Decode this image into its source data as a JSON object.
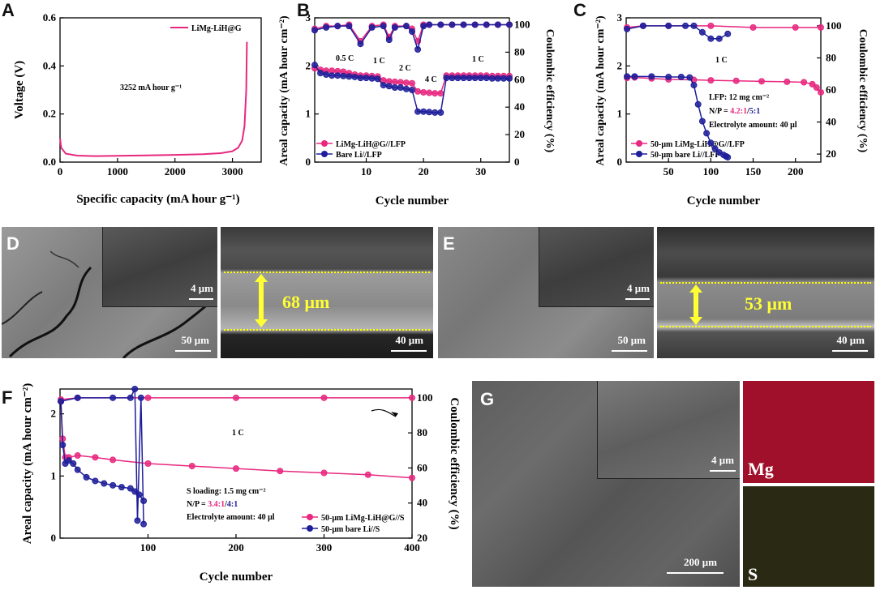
{
  "panels": {
    "A": {
      "letter": "A",
      "xlabel": "Specific capacity (mA hour g⁻¹)",
      "ylabel": "Voltage (V)",
      "legend": "LiMg-LiH@G",
      "annotation": "3252 mA hour g⁻¹",
      "xticks": [
        "0",
        "1000",
        "2000",
        "3000"
      ],
      "yticks": [
        "0.0",
        "0.2",
        "0.4",
        "0.6"
      ]
    },
    "B": {
      "letter": "B",
      "xlabel": "Cycle number",
      "ylabel": "Areal capacity (mA hour cm⁻²)",
      "y2label": "Coulombic efficiency (%)",
      "legend": [
        "LiMg-LiH@G//LFP",
        "Bare Li//LFP"
      ],
      "rates": [
        "0.5 C",
        "1 C",
        "2 C",
        "4 C",
        "1 C"
      ],
      "xticks": [
        "10",
        "20",
        "30"
      ],
      "yticks": [
        "0",
        "1",
        "2",
        "3"
      ],
      "y2ticks": [
        "0",
        "20",
        "40",
        "60",
        "80",
        "100"
      ]
    },
    "C": {
      "letter": "C",
      "xlabel": "Cycle number",
      "ylabel": "Areal capacity (mA hour cm⁻²)",
      "y2label": "Coulombic efficiency (%)",
      "legend": [
        "50-μm LiMg-LiH@G//LFP",
        "50-μm bare Li//LFP"
      ],
      "rate": "1 C",
      "info": [
        "LFP: 12 mg cm⁻²",
        "N/P = ",
        "4.2:1",
        "/",
        "5:1",
        "Electrolyte amount: 40 μl"
      ],
      "xticks": [
        "50",
        "100",
        "150",
        "200"
      ],
      "yticks": [
        "0",
        "1",
        "2",
        "3"
      ],
      "y2ticks": [
        "20",
        "40",
        "60",
        "80",
        "100"
      ]
    },
    "D": {
      "letter": "D",
      "scale_main": "50 μm",
      "scale_inset": "4 μm",
      "scale_cross": "40 μm",
      "thickness": "68 μm"
    },
    "E": {
      "letter": "E",
      "scale_main": "50 μm",
      "scale_inset": "4 μm",
      "scale_cross": "40 μm",
      "thickness": "53 μm"
    },
    "F": {
      "letter": "F",
      "xlabel": "Cycle number",
      "ylabel": "Areal capacity (mA hour cm⁻²)",
      "y2label": "Coulombic efficiency (%)",
      "legend": [
        "50-μm LiMg-LiH@G//S",
        "50-μm bare Li//S"
      ],
      "rate": "1 C",
      "info": [
        "S loading: 1.5 mg cm⁻²",
        "N/P = ",
        "3.4:1",
        "/",
        "4:1",
        "Electrolyte amount: 40 μl"
      ],
      "xticks": [
        "100",
        "200",
        "300",
        "400"
      ],
      "yticks": [
        "0",
        "1",
        "2"
      ],
      "y2ticks": [
        "20",
        "40",
        "60",
        "80",
        "100"
      ]
    },
    "G": {
      "letter": "G",
      "scale_main": "200 μm",
      "scale_inset": "4 μm",
      "map1": "Mg",
      "map2": "S"
    }
  },
  "colors": {
    "pink": "#e8287f",
    "navy": "#1e1e9a",
    "mg_map": "#a0102a",
    "s_map": "#2a2a14"
  },
  "chart_data": [
    {
      "type": "line",
      "title": "",
      "xlabel": "Specific capacity (mA hour g⁻¹)",
      "ylabel": "Voltage (V)",
      "xlim": [
        0,
        3500
      ],
      "ylim": [
        0,
        0.6
      ],
      "series": [
        {
          "name": "LiMg-LiH@G",
          "x": [
            0,
            20,
            100,
            300,
            600,
            1000,
            1500,
            2000,
            2500,
            2800,
            3000,
            3100,
            3170,
            3210,
            3240,
            3252
          ],
          "y": [
            0.1,
            0.06,
            0.035,
            0.027,
            0.025,
            0.026,
            0.028,
            0.03,
            0.033,
            0.037,
            0.045,
            0.06,
            0.09,
            0.15,
            0.3,
            0.5
          ]
        }
      ]
    },
    {
      "type": "scatter",
      "title": "",
      "xlabel": "Cycle number",
      "ylabel": "Areal capacity (mA hour cm⁻²)",
      "y2label": "Coulombic efficiency (%)",
      "xlim": [
        1,
        35
      ],
      "ylim": [
        0,
        3
      ],
      "y2lim": [
        0,
        105
      ],
      "rates": [
        "0.5 C",
        "1 C",
        "2 C",
        "4 C",
        "1 C"
      ],
      "series": [
        {
          "name": "LiMg-LiH@G//LFP",
          "axis": "left",
          "x": [
            1,
            2,
            3,
            4,
            5,
            6,
            7,
            8,
            9,
            10,
            11,
            12,
            13,
            14,
            15,
            16,
            17,
            18,
            19,
            20,
            21,
            22,
            23,
            24,
            25,
            26,
            27,
            28,
            29,
            30,
            31,
            32,
            33,
            34,
            35
          ],
          "y": [
            1.95,
            1.92,
            1.9,
            1.9,
            1.89,
            1.88,
            1.85,
            1.82,
            1.8,
            1.8,
            1.79,
            1.78,
            1.7,
            1.68,
            1.67,
            1.66,
            1.65,
            1.64,
            1.47,
            1.45,
            1.44,
            1.43,
            1.43,
            1.8,
            1.8,
            1.8,
            1.8,
            1.8,
            1.8,
            1.8,
            1.8,
            1.79,
            1.79,
            1.79,
            1.79
          ]
        },
        {
          "name": "Bare Li//LFP",
          "axis": "left",
          "x": [
            1,
            2,
            3,
            4,
            5,
            6,
            7,
            8,
            9,
            10,
            11,
            12,
            13,
            14,
            15,
            16,
            17,
            18,
            19,
            20,
            21,
            22,
            23,
            24,
            25,
            26,
            27,
            28,
            29,
            30,
            31,
            32,
            33,
            34,
            35
          ],
          "y": [
            2.02,
            1.85,
            1.82,
            1.8,
            1.8,
            1.79,
            1.78,
            1.77,
            1.75,
            1.75,
            1.74,
            1.73,
            1.6,
            1.58,
            1.55,
            1.55,
            1.52,
            1.5,
            1.05,
            1.05,
            1.04,
            1.03,
            1.03,
            1.75,
            1.75,
            1.75,
            1.75,
            1.75,
            1.75,
            1.75,
            1.75,
            1.74,
            1.74,
            1.74,
            1.74
          ]
        },
        {
          "name": "CE LiMg-LiH@G",
          "axis": "right",
          "x": [
            1,
            3,
            5,
            7,
            9,
            11,
            13,
            14,
            15,
            17,
            18,
            19,
            20,
            21,
            23,
            25,
            27,
            29,
            31,
            33,
            35
          ],
          "y": [
            97,
            99,
            99,
            100,
            88,
            99,
            100,
            91,
            99,
            99,
            97,
            88,
            100,
            100,
            100,
            100,
            100,
            100,
            100,
            100,
            100
          ]
        },
        {
          "name": "CE Bare Li",
          "axis": "right",
          "x": [
            1,
            3,
            5,
            7,
            9,
            11,
            13,
            14,
            15,
            17,
            18,
            19,
            20,
            21,
            23,
            25,
            27,
            29,
            31,
            33,
            35
          ],
          "y": [
            96,
            98,
            99,
            99,
            86,
            98,
            99,
            89,
            98,
            99,
            95,
            82,
            99,
            100,
            100,
            100,
            100,
            100,
            100,
            100,
            100
          ]
        }
      ]
    },
    {
      "type": "scatter",
      "title": "",
      "xlabel": "Cycle number",
      "ylabel": "Areal capacity (mA hour cm⁻²)",
      "y2label": "Coulombic efficiency (%)",
      "xlim": [
        0,
        230
      ],
      "ylim": [
        0,
        3
      ],
      "y2lim": [
        15,
        105
      ],
      "series": [
        {
          "name": "50-μm LiMg-LiH@G//LFP",
          "axis": "left",
          "x": [
            1,
            10,
            30,
            50,
            80,
            100,
            130,
            160,
            190,
            210,
            220,
            225,
            230
          ],
          "y": [
            1.75,
            1.76,
            1.74,
            1.72,
            1.71,
            1.7,
            1.69,
            1.68,
            1.67,
            1.66,
            1.62,
            1.55,
            1.45
          ]
        },
        {
          "name": "50-μm bare Li//LFP",
          "axis": "left",
          "x": [
            1,
            10,
            30,
            50,
            65,
            75,
            80,
            85,
            90,
            95,
            100,
            105,
            110,
            115,
            118,
            120
          ],
          "y": [
            1.78,
            1.78,
            1.78,
            1.77,
            1.77,
            1.76,
            1.6,
            1.2,
            0.85,
            0.6,
            0.4,
            0.28,
            0.2,
            0.15,
            0.12,
            0.1
          ]
        },
        {
          "name": "CE LiMg-LiH@G",
          "axis": "right",
          "x": [
            1,
            20,
            50,
            100,
            150,
            200,
            230
          ],
          "y": [
            99,
            100,
            100,
            100,
            99,
            99,
            99
          ]
        },
        {
          "name": "CE bare Li",
          "axis": "right",
          "x": [
            1,
            20,
            50,
            70,
            80,
            90,
            100,
            110,
            120
          ],
          "y": [
            98,
            100,
            100,
            100,
            100,
            96,
            92,
            92,
            95
          ]
        }
      ]
    },
    {
      "type": "scatter",
      "title": "",
      "xlabel": "Cycle number",
      "ylabel": "Areal capacity (mA hour cm⁻²)",
      "y2label": "Coulombic efficiency (%)",
      "xlim": [
        0,
        400
      ],
      "ylim": [
        0,
        2.4
      ],
      "y2lim": [
        20,
        105
      ],
      "series": [
        {
          "name": "50-μm LiMg-LiH@G//S",
          "axis": "left",
          "x": [
            1,
            3,
            6,
            10,
            20,
            40,
            60,
            100,
            150,
            200,
            250,
            300,
            350,
            400
          ],
          "y": [
            2.2,
            1.6,
            1.3,
            1.3,
            1.33,
            1.3,
            1.26,
            1.2,
            1.16,
            1.12,
            1.08,
            1.05,
            1.02,
            0.97
          ]
        },
        {
          "name": "50-μm bare Li//S",
          "axis": "left",
          "x": [
            1,
            3,
            6,
            10,
            15,
            20,
            30,
            40,
            50,
            60,
            70,
            80,
            85,
            90,
            95
          ],
          "y": [
            2.2,
            1.5,
            1.2,
            1.25,
            1.2,
            1.1,
            0.98,
            0.92,
            0.88,
            0.85,
            0.82,
            0.8,
            0.75,
            0.7,
            0.6
          ]
        },
        {
          "name": "CE LiMg-LiH@G",
          "axis": "right",
          "x": [
            1,
            20,
            100,
            200,
            300,
            400
          ],
          "y": [
            99,
            100,
            100,
            100,
            100,
            100
          ]
        },
        {
          "name": "CE bare Li",
          "axis": "right",
          "x": [
            1,
            20,
            60,
            80,
            85,
            88,
            92,
            95
          ],
          "y": [
            98,
            100,
            100,
            100,
            105,
            30,
            100,
            28
          ]
        }
      ]
    }
  ]
}
